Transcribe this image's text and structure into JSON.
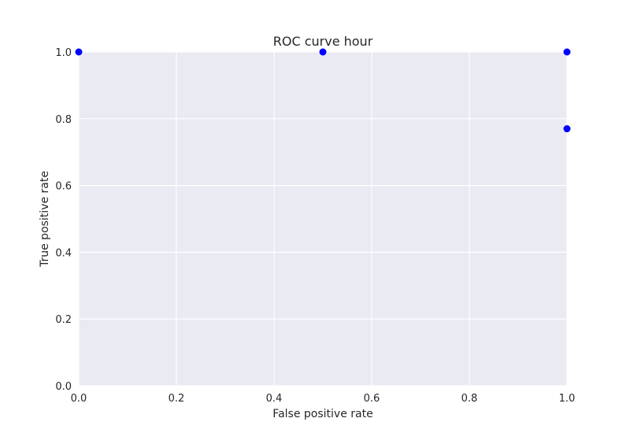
{
  "chart_data": {
    "type": "scatter",
    "title": "ROC curve hour",
    "xlabel": "False positive rate",
    "ylabel": "True positive rate",
    "xlim": [
      0.0,
      1.0
    ],
    "ylim": [
      0.0,
      1.0
    ],
    "xticks": [
      "0.0",
      "0.2",
      "0.4",
      "0.6",
      "0.8",
      "1.0"
    ],
    "yticks": [
      "0.0",
      "0.2",
      "0.4",
      "0.6",
      "0.8",
      "1.0"
    ],
    "grid": true,
    "series": [
      {
        "points": [
          {
            "x": 0.0,
            "y": 1.0
          },
          {
            "x": 0.5,
            "y": 1.0
          },
          {
            "x": 1.0,
            "y": 1.0
          },
          {
            "x": 1.0,
            "y": 0.77
          }
        ]
      }
    ],
    "colors": {
      "background": "#eaeaf2",
      "grid": "#ffffff",
      "marker": "#0000ff"
    }
  }
}
